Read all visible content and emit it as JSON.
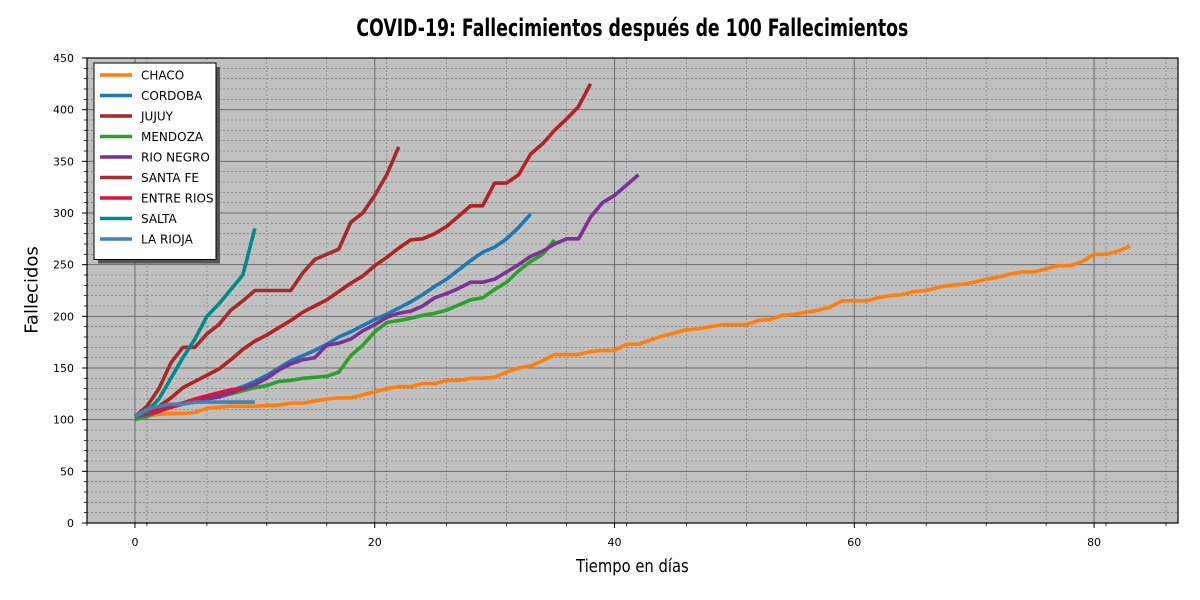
{
  "chart_data": {
    "type": "line",
    "title": "COVID-19: Fallecimientos después de 100 Fallecimientos",
    "xlabel": "Tiempo en días",
    "ylabel": "Fallecidos",
    "xlim": [
      -4,
      87
    ],
    "ylim": [
      0,
      450
    ],
    "xticks": [
      0,
      20,
      40,
      60,
      80
    ],
    "yticks": [
      0,
      50,
      100,
      150,
      200,
      250,
      300,
      350,
      400,
      450
    ],
    "grid": true,
    "background": "#c0c0c0",
    "legend_position": "top-left",
    "series": [
      {
        "name": "CHACO",
        "color": "#ff7f0e",
        "x": [
          0,
          1,
          2,
          3,
          4,
          5,
          6,
          7,
          8,
          9,
          10,
          11,
          12,
          13,
          14,
          15,
          16,
          17,
          18,
          19,
          20,
          21,
          22,
          23,
          24,
          25,
          26,
          27,
          28,
          29,
          30,
          31,
          32,
          33,
          34,
          35,
          36,
          37,
          38,
          39,
          40,
          41,
          42,
          43,
          44,
          45,
          46,
          47,
          48,
          49,
          50,
          51,
          52,
          53,
          54,
          55,
          56,
          57,
          58,
          59,
          60,
          61,
          62,
          63,
          64,
          65,
          66,
          67,
          68,
          69,
          70,
          71,
          72,
          73,
          74,
          75,
          76,
          77,
          78,
          79,
          80,
          81,
          82,
          83
        ],
        "y": [
          103,
          104,
          105,
          106,
          106,
          107,
          111,
          112,
          113,
          113,
          113,
          114,
          114,
          116,
          116,
          118,
          120,
          121,
          121,
          124,
          127,
          130,
          132,
          132,
          135,
          135,
          138,
          138,
          140,
          140,
          141,
          146,
          150,
          152,
          157,
          163,
          163,
          163,
          166,
          167,
          167,
          173,
          173,
          177,
          181,
          184,
          187,
          188,
          190,
          192,
          192,
          192,
          196,
          197,
          201,
          202,
          204,
          206,
          209,
          215,
          215,
          215,
          218,
          220,
          221,
          224,
          225,
          228,
          230,
          231,
          233,
          236,
          238,
          241,
          243,
          243,
          246,
          249,
          249,
          253,
          260,
          260,
          263,
          268
        ]
      },
      {
        "name": "CORDOBA",
        "color": "#1f77b4",
        "x": [
          0,
          1,
          2,
          3,
          4,
          5,
          6,
          7,
          8,
          9,
          10,
          11,
          12,
          13,
          14,
          15,
          16,
          17,
          18,
          19,
          20,
          21,
          22,
          23,
          24,
          25,
          26,
          27,
          28,
          29,
          30,
          31,
          32,
          33
        ],
        "y": [
          103,
          106,
          110,
          114,
          116,
          118,
          121,
          124,
          128,
          132,
          137,
          143,
          150,
          157,
          162,
          167,
          173,
          180,
          185,
          191,
          197,
          202,
          208,
          214,
          221,
          229,
          236,
          245,
          254,
          262,
          267,
          275,
          286,
          299
        ],
        "y_end": 319
      },
      {
        "name": "JUJUY",
        "color": "#b22222",
        "x": [
          0,
          1,
          2,
          3,
          4,
          5,
          6,
          7,
          8,
          9,
          10,
          11,
          12,
          13,
          14,
          15,
          16,
          17,
          18,
          19,
          20,
          21,
          22,
          23,
          24,
          25,
          26,
          27,
          28,
          29,
          30,
          31,
          32,
          33,
          34,
          35,
          36,
          37,
          38
        ],
        "y": [
          103,
          108,
          113,
          121,
          131,
          137,
          143,
          149,
          158,
          168,
          176,
          182,
          189,
          196,
          204,
          210,
          216,
          224,
          232,
          239,
          249,
          257,
          266,
          274,
          275,
          280,
          287,
          297,
          307,
          307,
          329,
          329,
          337,
          357,
          367,
          380,
          391,
          403,
          425
        ]
      },
      {
        "name": "MENDOZA",
        "color": "#2ca02c",
        "x": [
          0,
          1,
          2,
          3,
          4,
          5,
          6,
          7,
          8,
          9,
          10,
          11,
          12,
          13,
          14,
          15,
          16,
          17,
          18,
          19,
          20,
          21,
          22,
          23,
          24,
          25,
          26,
          27,
          28,
          29,
          30,
          31,
          32,
          33,
          34,
          35
        ],
        "y": [
          100,
          103,
          108,
          113,
          116,
          118,
          120,
          122,
          125,
          128,
          131,
          133,
          137,
          138,
          140,
          141,
          142,
          146,
          162,
          172,
          185,
          194,
          196,
          198,
          201,
          203,
          206,
          211,
          216,
          218,
          226,
          233,
          244,
          253,
          260,
          274
        ]
      },
      {
        "name": "RIO NEGRO",
        "color": "#7b3294",
        "x": [
          0,
          1,
          2,
          3,
          4,
          5,
          6,
          7,
          8,
          9,
          10,
          11,
          12,
          13,
          14,
          15,
          16,
          17,
          18,
          19,
          20,
          21,
          22,
          23,
          24,
          25,
          26,
          27,
          28,
          29,
          30,
          31,
          32,
          33,
          34,
          35,
          36,
          37,
          38,
          39,
          40,
          41,
          42
        ],
        "y": [
          103,
          105,
          108,
          112,
          115,
          118,
          120,
          122,
          126,
          130,
          134,
          140,
          148,
          154,
          158,
          160,
          172,
          174,
          178,
          186,
          192,
          199,
          203,
          205,
          210,
          218,
          222,
          227,
          233,
          233,
          236,
          243,
          250,
          258,
          263,
          270,
          275,
          275,
          296,
          310,
          317,
          327,
          337
        ]
      },
      {
        "name": "SANTA FE",
        "color": "#a52a2a",
        "x": [
          0,
          1,
          2,
          3,
          4,
          5,
          6,
          7,
          8,
          9,
          10,
          11,
          12,
          13,
          14,
          15,
          16,
          17,
          18,
          19,
          20,
          21,
          22
        ],
        "y": [
          103,
          113,
          130,
          155,
          170,
          170,
          183,
          192,
          206,
          215,
          225,
          225,
          225,
          225,
          242,
          255,
          260,
          265,
          291,
          300,
          317,
          337,
          364
        ]
      },
      {
        "name": "ENTRE RIOS",
        "color": "#dc143c",
        "x": [
          0,
          1,
          2,
          3,
          4,
          5,
          6,
          7,
          8,
          9
        ],
        "y": [
          103,
          106,
          109,
          112,
          116,
          120,
          123,
          126,
          129,
          130
        ]
      },
      {
        "name": "SALTA",
        "color": "#008b8b",
        "x": [
          0,
          1,
          2,
          3,
          4,
          5,
          6,
          7,
          8,
          9,
          10
        ],
        "y": [
          103,
          108,
          120,
          140,
          160,
          178,
          200,
          212,
          226,
          240,
          285
        ]
      },
      {
        "name": "LA RIOJA",
        "color": "#4682b4",
        "x": [
          0,
          1,
          2,
          3,
          4,
          5,
          6,
          7,
          8,
          9,
          10
        ],
        "y": [
          103,
          110,
          113,
          115,
          115,
          117,
          117,
          117,
          117,
          117,
          117
        ]
      }
    ]
  }
}
